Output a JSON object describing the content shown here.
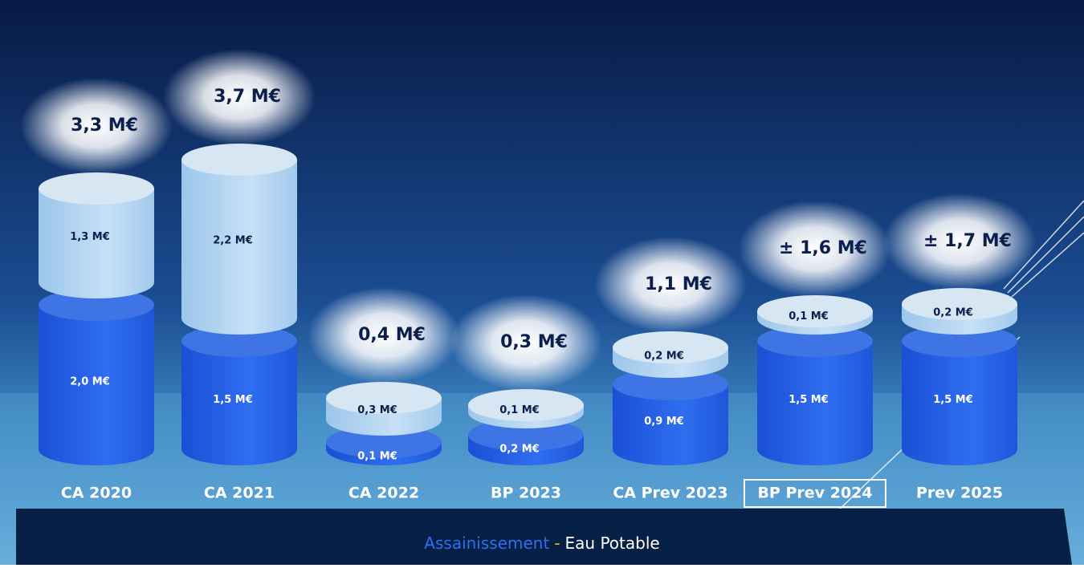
{
  "chart_data": {
    "type": "stacked-cylinder",
    "categories": [
      "CA 2020",
      "CA 2021",
      "CA 2022",
      "BP 2023",
      "CA Prev 2023",
      "BP Prev 2024",
      "Prev 2025"
    ],
    "series": [
      {
        "name": "Assainissement",
        "color": "#2a62e6",
        "values": [
          2.0,
          1.5,
          0.1,
          0.2,
          0.9,
          1.5,
          1.5
        ],
        "value_labels": [
          "2,0 M€",
          "1,5 M€",
          "0,1 M€",
          "0,2 M€",
          "0,9 M€",
          "1,5 M€",
          "1,5 M€"
        ]
      },
      {
        "name": "Eau Potable",
        "color": "#a9cff0",
        "values": [
          1.3,
          2.2,
          0.3,
          0.1,
          0.2,
          0.1,
          0.2
        ],
        "value_labels": [
          "1,3 M€",
          "2,2 M€",
          "0,3 M€",
          "0,1 M€",
          "0,2 M€",
          "0,1 M€",
          "0,2 M€"
        ]
      }
    ],
    "totals": {
      "values": [
        3.3,
        3.7,
        0.4,
        0.3,
        1.1,
        1.6,
        1.7
      ],
      "value_labels": [
        "3,3 M€",
        "3,7 M€",
        "0,4 M€",
        "0,3 M€",
        "1,1 M€",
        "± 1,6 M€",
        "± 1,7 M€"
      ]
    },
    "legend_separator": "-",
    "highlighted_category": 5
  }
}
